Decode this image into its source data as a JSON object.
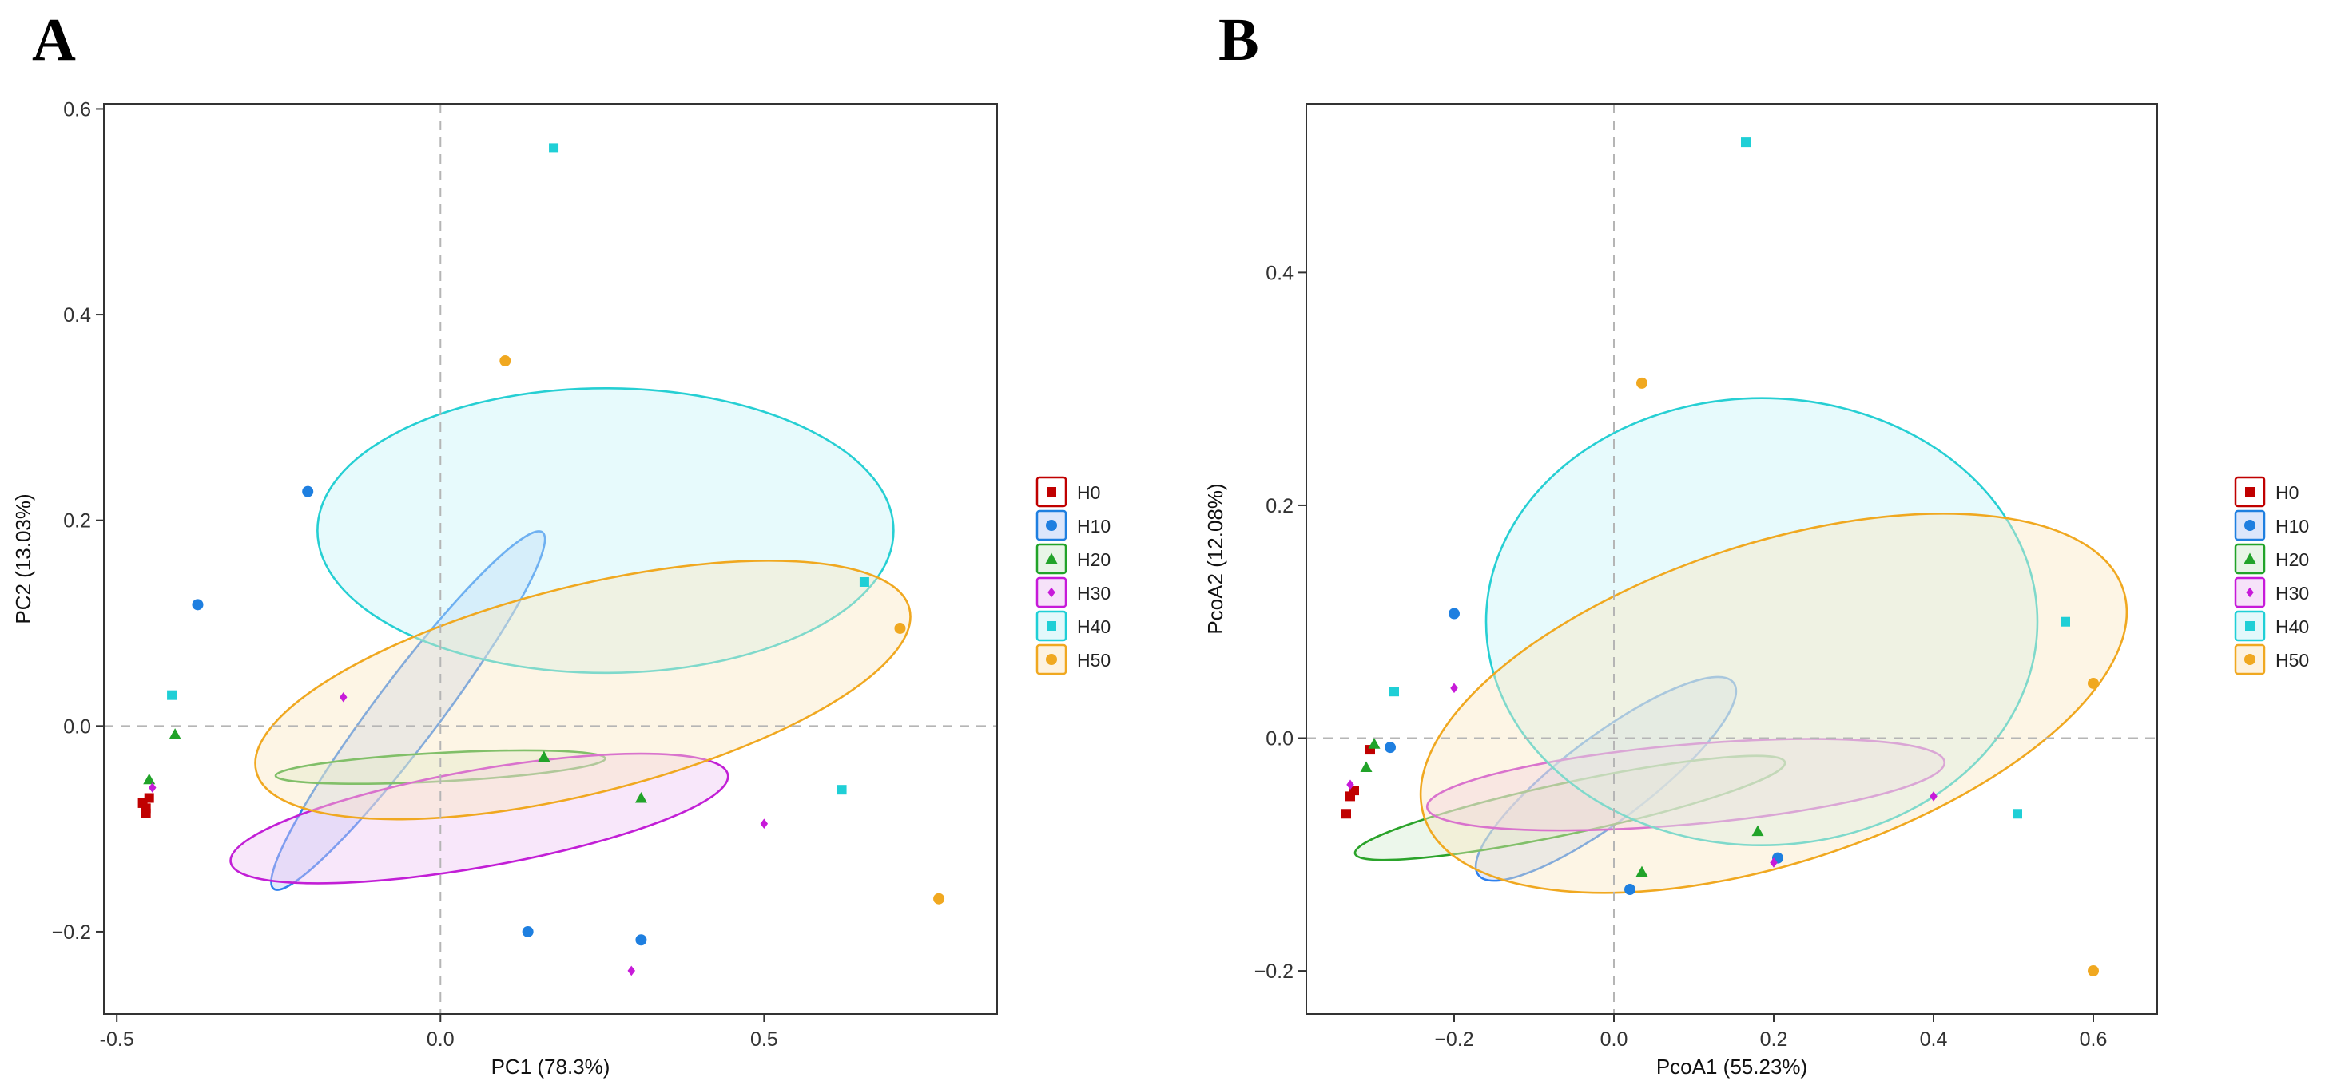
{
  "chart_data": [
    {
      "type": "scatter",
      "panel_label": "A",
      "title": "",
      "xlabel": "PC1 (78.3%)",
      "ylabel": "PC2 (13.03%)",
      "xlim": [
        -0.52,
        0.86
      ],
      "ylim": [
        -0.28,
        0.605
      ],
      "xticks": [
        -0.5,
        0.0,
        0.5
      ],
      "xtick_labels": [
        "-0.5",
        "0.0",
        "0.5"
      ],
      "yticks": [
        -0.2,
        0.0,
        0.2,
        0.4,
        0.6
      ],
      "ytick_labels": [
        "−0.2",
        "0.0",
        "0.2",
        "0.4",
        "0.6"
      ],
      "grid": false,
      "reference_lines": {
        "x": 0,
        "y": 0
      },
      "legend_position": "right",
      "series": [
        {
          "name": "H0",
          "marker": "square",
          "color": "#c00000",
          "points": [
            [
              -0.455,
              -0.085
            ],
            [
              -0.455,
              -0.08
            ],
            [
              -0.46,
              -0.075
            ],
            [
              -0.45,
              -0.07
            ]
          ],
          "ellipse": null
        },
        {
          "name": "H10",
          "marker": "circle",
          "color": "#1e7fe0",
          "points": [
            [
              -0.375,
              0.118
            ],
            [
              -0.205,
              0.228
            ],
            [
              0.135,
              -0.2
            ],
            [
              0.31,
              -0.208
            ]
          ],
          "ellipse": {
            "cx": -0.05,
            "cy": 0.015,
            "rx": 0.345,
            "ry": 0.05,
            "angle_deg": -53,
            "fill": "#b9cdf7",
            "stroke": "#2f80ed"
          }
        },
        {
          "name": "H20",
          "marker": "triangle",
          "color": "#21a329",
          "points": [
            [
              -0.41,
              -0.008
            ],
            [
              -0.45,
              -0.052
            ],
            [
              0.16,
              -0.03
            ],
            [
              0.31,
              -0.07
            ]
          ],
          "ellipse": {
            "cx": 0.0,
            "cy": -0.04,
            "rx": 0.255,
            "ry": 0.022,
            "angle_deg": -3,
            "fill": "#d2ebcf",
            "stroke": "#2aa32a"
          }
        },
        {
          "name": "H30",
          "marker": "diamond",
          "color": "#c71ad9",
          "points": [
            [
              -0.15,
              0.028
            ],
            [
              -0.445,
              -0.06
            ],
            [
              0.5,
              -0.095
            ],
            [
              0.295,
              -0.238
            ]
          ],
          "ellipse": {
            "cx": 0.06,
            "cy": -0.09,
            "rx": 0.39,
            "ry": 0.075,
            "angle_deg": -10,
            "fill": "#eec5f3",
            "stroke": "#c21fd6"
          }
        },
        {
          "name": "H40",
          "marker": "square",
          "color": "#1fcfd6",
          "points": [
            [
              0.175,
              0.562
            ],
            [
              -0.415,
              0.03
            ],
            [
              0.655,
              0.14
            ],
            [
              0.62,
              -0.062
            ]
          ],
          "ellipse": {
            "cx": 0.255,
            "cy": 0.19,
            "rx": 0.445,
            "ry": 0.22,
            "angle_deg": 0,
            "fill": "#c5f2f7",
            "stroke": "#26cfd3"
          }
        },
        {
          "name": "H50",
          "marker": "circle",
          "color": "#f0a820",
          "points": [
            [
              0.1,
              0.355
            ],
            [
              0.71,
              0.095
            ],
            [
              0.77,
              -0.168
            ]
          ],
          "ellipse": {
            "cx": 0.22,
            "cy": 0.035,
            "rx": 0.52,
            "ry": 0.16,
            "angle_deg": -14,
            "fill": "#fbe6c2",
            "stroke": "#f0a820"
          }
        }
      ]
    },
    {
      "type": "scatter",
      "panel_label": "B",
      "title": "",
      "xlabel": "PcoA1 (55.23%)",
      "ylabel": "PcoA2 (12.08%)",
      "xlim": [
        -0.385,
        0.68
      ],
      "ylim": [
        -0.237,
        0.545
      ],
      "xticks": [
        -0.2,
        0.0,
        0.2,
        0.4,
        0.6
      ],
      "xtick_labels": [
        "−0.2",
        "0.0",
        "0.2",
        "0.4",
        "0.6"
      ],
      "yticks": [
        -0.2,
        0.0,
        0.2,
        0.4
      ],
      "ytick_labels": [
        "−0.2",
        "0.0",
        "0.2",
        "0.4"
      ],
      "grid": false,
      "reference_lines": {
        "x": 0,
        "y": 0
      },
      "legend_position": "right",
      "series": [
        {
          "name": "H0",
          "marker": "square",
          "color": "#c00000",
          "points": [
            [
              -0.335,
              -0.065
            ],
            [
              -0.33,
              -0.05
            ],
            [
              -0.325,
              -0.045
            ],
            [
              -0.305,
              -0.01
            ]
          ],
          "ellipse": null
        },
        {
          "name": "H10",
          "marker": "circle",
          "color": "#1e7fe0",
          "points": [
            [
              -0.2,
              0.107
            ],
            [
              -0.28,
              -0.008
            ],
            [
              0.02,
              -0.13
            ],
            [
              0.205,
              -0.103
            ]
          ],
          "ellipse": {
            "cx": -0.01,
            "cy": -0.035,
            "rx": 0.2,
            "ry": 0.053,
            "angle_deg": -37,
            "fill": "#b9cdf7",
            "stroke": "#2f80ed"
          }
        },
        {
          "name": "H20",
          "marker": "triangle",
          "color": "#21a329",
          "points": [
            [
              -0.3,
              -0.005
            ],
            [
              -0.31,
              -0.025
            ],
            [
              0.18,
              -0.08
            ],
            [
              0.035,
              -0.115
            ]
          ],
          "ellipse": {
            "cx": -0.055,
            "cy": -0.06,
            "rx": 0.275,
            "ry": 0.032,
            "angle_deg": -12,
            "fill": "#d2ebcf",
            "stroke": "#2aa32a"
          }
        },
        {
          "name": "H30",
          "marker": "diamond",
          "color": "#c71ad9",
          "points": [
            [
              -0.2,
              0.043
            ],
            [
              -0.33,
              -0.04
            ],
            [
              0.4,
              -0.05
            ],
            [
              0.2,
              -0.107
            ]
          ],
          "ellipse": {
            "cx": 0.09,
            "cy": -0.04,
            "rx": 0.325,
            "ry": 0.05,
            "angle_deg": -5,
            "fill": "#eec5f3",
            "stroke": "#c21fd6"
          }
        },
        {
          "name": "H40",
          "marker": "square",
          "color": "#1fcfd6",
          "points": [
            [
              0.165,
              0.512
            ],
            [
              -0.275,
              0.04
            ],
            [
              0.565,
              0.1
            ],
            [
              0.505,
              -0.065
            ]
          ],
          "ellipse": {
            "cx": 0.185,
            "cy": 0.1,
            "rx": 0.345,
            "ry": 0.28,
            "angle_deg": 0,
            "fill": "#c5f2f7",
            "stroke": "#26cfd3"
          }
        },
        {
          "name": "H50",
          "marker": "circle",
          "color": "#f0a820",
          "points": [
            [
              0.035,
              0.305
            ],
            [
              0.6,
              0.047
            ],
            [
              0.6,
              -0.2
            ]
          ],
          "ellipse": {
            "cx": 0.2,
            "cy": 0.03,
            "rx": 0.46,
            "ry": 0.2,
            "angle_deg": -18,
            "fill": "#fbe6c2",
            "stroke": "#f0a820"
          }
        }
      ]
    }
  ]
}
